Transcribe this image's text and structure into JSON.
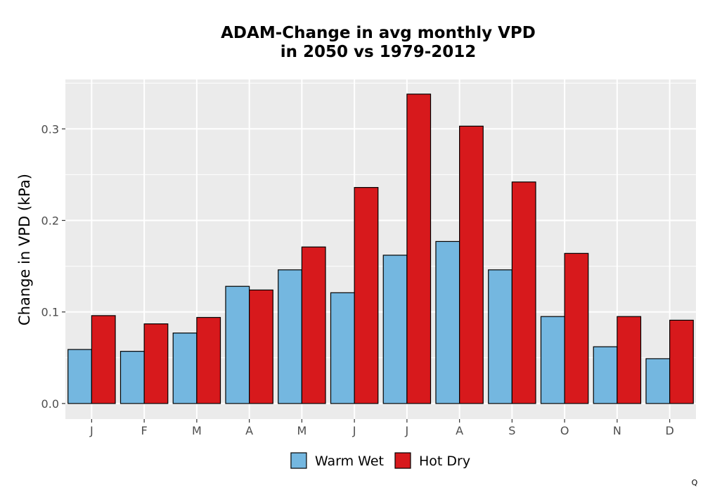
{
  "chart_data": {
    "type": "bar",
    "title_lines": [
      "ADAM-Change in avg monthly VPD",
      "in 2050 vs 1979-2012"
    ],
    "xlabel": "",
    "ylabel": "Change in VPD (kPa)",
    "categories": [
      "J",
      "F",
      "M",
      "A",
      "M",
      "J",
      "J",
      "A",
      "S",
      "O",
      "N",
      "D"
    ],
    "series": [
      {
        "name": "Warm Wet",
        "color": "#74b7e0",
        "values": [
          0.059,
          0.057,
          0.077,
          0.128,
          0.146,
          0.121,
          0.162,
          0.177,
          0.146,
          0.095,
          0.062,
          0.049
        ]
      },
      {
        "name": "Hot Dry",
        "color": "#d7191c",
        "values": [
          0.096,
          0.087,
          0.094,
          0.124,
          0.171,
          0.236,
          0.338,
          0.303,
          0.242,
          0.164,
          0.095,
          0.091
        ]
      }
    ],
    "ylim": [
      -0.017,
      0.354
    ],
    "yticks": [
      0.0,
      0.1,
      0.2,
      0.3
    ],
    "ytick_labels": [
      "0.0",
      "0.1",
      "0.2",
      "0.3"
    ],
    "grid": true,
    "legend_position": "bottom",
    "panel_color": "#ebebeb",
    "grid_color": "#ffffff",
    "bar_outline_color": "#000000"
  },
  "corner_mark": "Q"
}
